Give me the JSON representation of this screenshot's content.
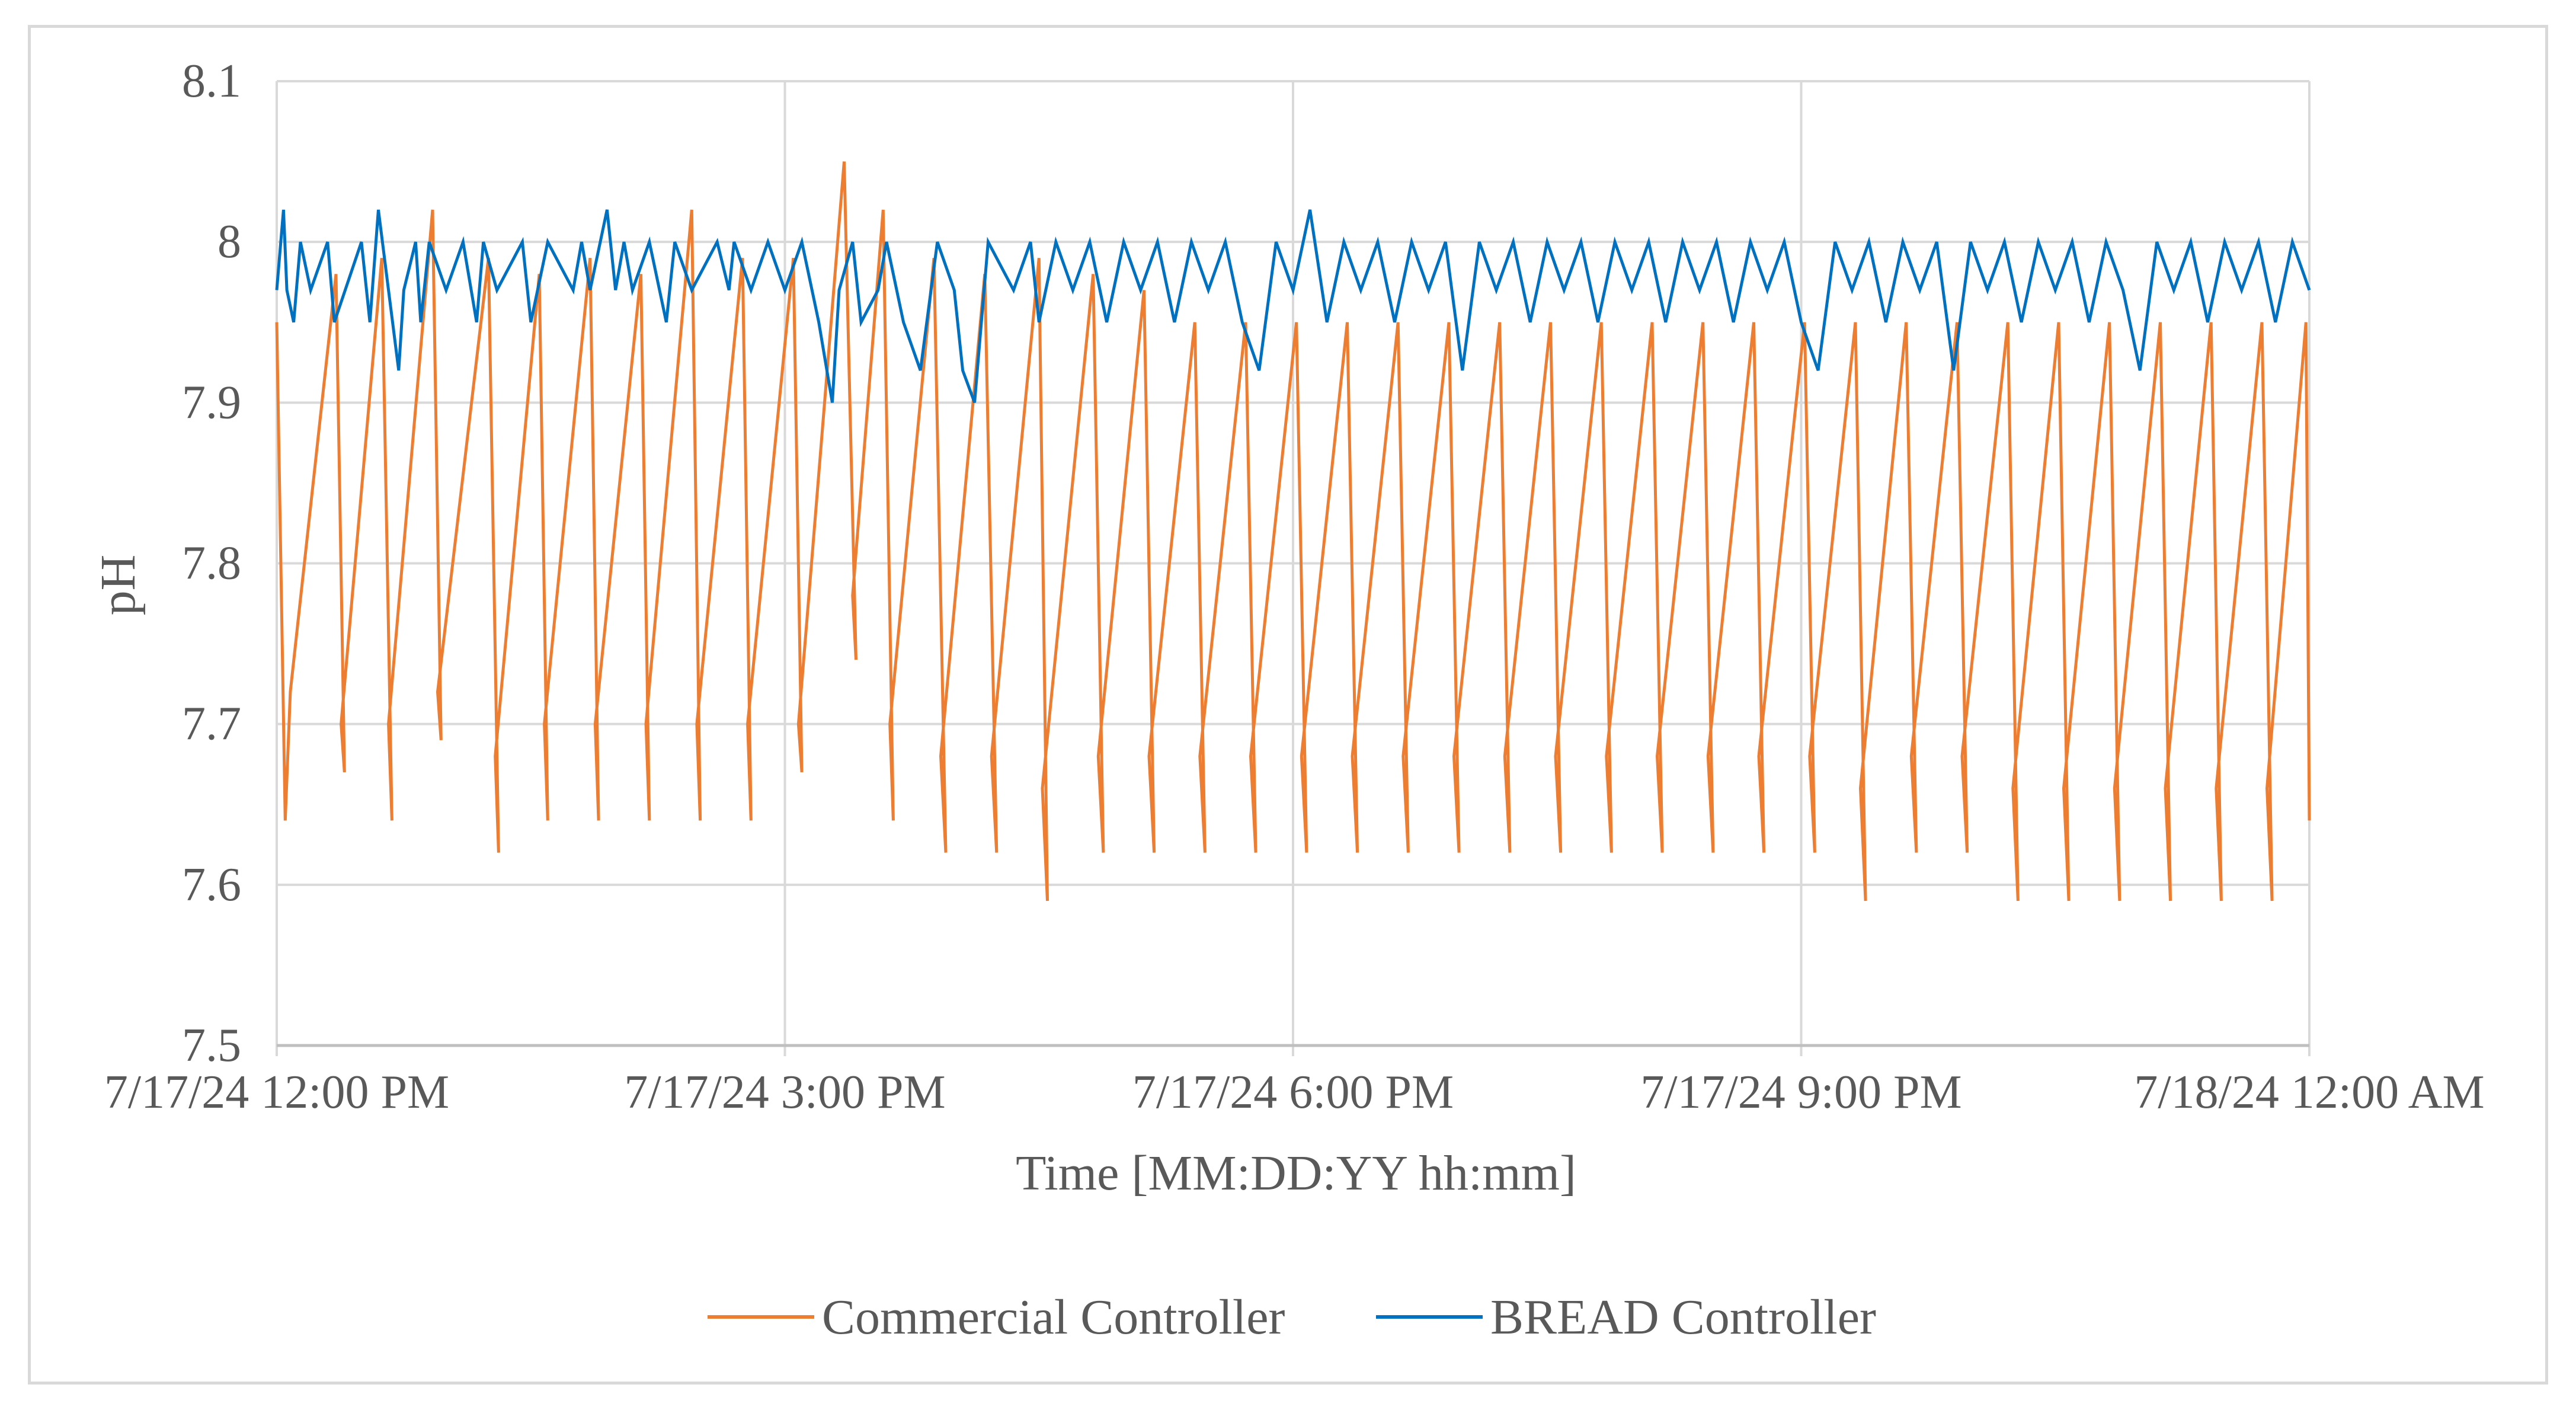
{
  "chart_data": {
    "type": "line",
    "title": "",
    "xlabel": "Time [MM:DD:YY hh:mm]",
    "ylabel": "pH",
    "x_tick_labels": [
      "7/17/24 12:00 PM",
      "7/17/24 3:00 PM",
      "7/17/24 6:00 PM",
      "7/17/24 9:00 PM",
      "7/18/24 12:00 AM"
    ],
    "y_tick_labels": [
      "7.5",
      "7.6",
      "7.7",
      "7.8",
      "7.9",
      "8",
      "8.1"
    ],
    "xlim_hours": [
      0,
      12
    ],
    "ylim": [
      7.5,
      8.1
    ],
    "y_ticks": [
      7.5,
      7.6,
      7.7,
      7.8,
      7.9,
      8.0,
      8.1
    ],
    "grid": true,
    "legend_position": "bottom",
    "series": [
      {
        "name": "Commercial Controller",
        "color": "#ed7d31",
        "x_hours": [
          0.0,
          0.05,
          0.08,
          0.35,
          0.4,
          0.38,
          0.62,
          0.68,
          0.66,
          0.92,
          0.97,
          0.95,
          1.25,
          1.31,
          1.29,
          1.55,
          1.6,
          1.58,
          1.85,
          1.9,
          1.88,
          2.15,
          2.2,
          2.18,
          2.45,
          2.5,
          2.48,
          2.75,
          2.8,
          2.78,
          3.05,
          3.1,
          3.08,
          3.35,
          3.42,
          3.4,
          3.58,
          3.64,
          3.62,
          3.88,
          3.95,
          3.92,
          4.18,
          4.25,
          4.22,
          4.5,
          4.55,
          4.52,
          4.82,
          4.88,
          4.85,
          5.12,
          5.18,
          5.15,
          5.42,
          5.48,
          5.45,
          5.72,
          5.78,
          5.75,
          6.02,
          6.08,
          6.05,
          6.32,
          6.38,
          6.35,
          6.62,
          6.68,
          6.65,
          6.92,
          6.98,
          6.95,
          7.22,
          7.28,
          7.25,
          7.52,
          7.58,
          7.55,
          7.82,
          7.88,
          7.85,
          8.12,
          8.18,
          8.15,
          8.42,
          8.48,
          8.45,
          8.72,
          8.78,
          8.75,
          9.02,
          9.08,
          9.05,
          9.32,
          9.38,
          9.35,
          9.62,
          9.68,
          9.65,
          9.92,
          9.98,
          9.95,
          10.22,
          10.28,
          10.25,
          10.52,
          10.58,
          10.55,
          10.82,
          10.88,
          10.85,
          11.12,
          11.18,
          11.15,
          11.42,
          11.48,
          11.45,
          11.72,
          11.78,
          11.75,
          11.98,
          12.0
        ],
        "values": [
          7.95,
          7.64,
          7.72,
          7.98,
          7.67,
          7.7,
          7.99,
          7.64,
          7.7,
          8.02,
          7.69,
          7.72,
          7.99,
          7.62,
          7.68,
          7.98,
          7.64,
          7.7,
          7.99,
          7.64,
          7.7,
          7.98,
          7.64,
          7.7,
          8.02,
          7.64,
          7.7,
          7.99,
          7.64,
          7.7,
          7.99,
          7.67,
          7.7,
          8.05,
          7.74,
          7.78,
          8.02,
          7.64,
          7.7,
          7.99,
          7.62,
          7.68,
          7.98,
          7.62,
          7.68,
          7.99,
          7.59,
          7.66,
          7.98,
          7.62,
          7.68,
          7.97,
          7.62,
          7.68,
          7.95,
          7.62,
          7.68,
          7.95,
          7.62,
          7.68,
          7.95,
          7.62,
          7.68,
          7.95,
          7.62,
          7.68,
          7.95,
          7.62,
          7.68,
          7.95,
          7.62,
          7.68,
          7.95,
          7.62,
          7.68,
          7.95,
          7.62,
          7.68,
          7.95,
          7.62,
          7.68,
          7.95,
          7.62,
          7.68,
          7.95,
          7.62,
          7.68,
          7.95,
          7.62,
          7.68,
          7.95,
          7.62,
          7.68,
          7.95,
          7.59,
          7.66,
          7.95,
          7.62,
          7.68,
          7.95,
          7.62,
          7.68,
          7.95,
          7.59,
          7.66,
          7.95,
          7.59,
          7.66,
          7.95,
          7.59,
          7.66,
          7.95,
          7.59,
          7.66,
          7.95,
          7.59,
          7.66,
          7.95,
          7.59,
          7.66,
          7.95,
          7.64
        ]
      },
      {
        "name": "BREAD Controller",
        "color": "#0070c0",
        "x_hours": [
          0.0,
          0.04,
          0.06,
          0.1,
          0.14,
          0.2,
          0.3,
          0.34,
          0.5,
          0.55,
          0.6,
          0.66,
          0.72,
          0.75,
          0.82,
          0.85,
          0.9,
          1.0,
          1.1,
          1.18,
          1.22,
          1.3,
          1.45,
          1.5,
          1.6,
          1.75,
          1.8,
          1.85,
          1.95,
          2.0,
          2.05,
          2.1,
          2.2,
          2.3,
          2.35,
          2.45,
          2.6,
          2.67,
          2.7,
          2.8,
          2.9,
          3.0,
          3.1,
          3.2,
          3.28,
          3.32,
          3.4,
          3.45,
          3.55,
          3.6,
          3.7,
          3.8,
          3.9,
          4.0,
          4.05,
          4.12,
          4.2,
          4.35,
          4.45,
          4.5,
          4.6,
          4.7,
          4.8,
          4.9,
          5.0,
          5.1,
          5.2,
          5.3,
          5.4,
          5.5,
          5.6,
          5.7,
          5.8,
          5.9,
          6.0,
          6.1,
          6.2,
          6.3,
          6.4,
          6.5,
          6.6,
          6.7,
          6.8,
          6.9,
          7.0,
          7.1,
          7.2,
          7.3,
          7.4,
          7.5,
          7.6,
          7.7,
          7.8,
          7.9,
          8.0,
          8.1,
          8.2,
          8.3,
          8.4,
          8.5,
          8.6,
          8.7,
          8.8,
          8.9,
          9.0,
          9.1,
          9.2,
          9.3,
          9.4,
          9.5,
          9.6,
          9.7,
          9.8,
          9.9,
          10.0,
          10.1,
          10.2,
          10.3,
          10.4,
          10.5,
          10.6,
          10.7,
          10.8,
          10.9,
          11.0,
          11.1,
          11.2,
          11.3,
          11.4,
          11.5,
          11.6,
          11.7,
          11.8,
          11.9,
          12.0
        ],
        "values": [
          7.97,
          8.02,
          7.97,
          7.95,
          8.0,
          7.97,
          8.0,
          7.95,
          8.0,
          7.95,
          8.02,
          7.97,
          7.92,
          7.97,
          8.0,
          7.95,
          8.0,
          7.97,
          8.0,
          7.95,
          8.0,
          7.97,
          8.0,
          7.95,
          8.0,
          7.97,
          8.0,
          7.97,
          8.02,
          7.97,
          8.0,
          7.97,
          8.0,
          7.95,
          8.0,
          7.97,
          8.0,
          7.97,
          8.0,
          7.97,
          8.0,
          7.97,
          8.0,
          7.95,
          7.9,
          7.97,
          8.0,
          7.95,
          7.97,
          8.0,
          7.95,
          7.92,
          8.0,
          7.97,
          7.92,
          7.9,
          8.0,
          7.97,
          8.0,
          7.95,
          8.0,
          7.97,
          8.0,
          7.95,
          8.0,
          7.97,
          8.0,
          7.95,
          8.0,
          7.97,
          8.0,
          7.95,
          7.92,
          8.0,
          7.97,
          8.02,
          7.95,
          8.0,
          7.97,
          8.0,
          7.95,
          8.0,
          7.97,
          8.0,
          7.92,
          8.0,
          7.97,
          8.0,
          7.95,
          8.0,
          7.97,
          8.0,
          7.95,
          8.0,
          7.97,
          8.0,
          7.95,
          8.0,
          7.97,
          8.0,
          7.95,
          8.0,
          7.97,
          8.0,
          7.95,
          7.92,
          8.0,
          7.97,
          8.0,
          7.95,
          8.0,
          7.97,
          8.0,
          7.92,
          8.0,
          7.97,
          8.0,
          7.95,
          8.0,
          7.97,
          8.0,
          7.95,
          8.0,
          7.97,
          7.92,
          8.0,
          7.97,
          8.0,
          7.95,
          8.0,
          7.97,
          8.0,
          7.95,
          8.0,
          7.97
        ]
      }
    ]
  },
  "colors": {
    "grid": "#d9d9d9",
    "axis": "#bfbfbf",
    "text": "#595959",
    "frame": "#d9d9d9"
  }
}
